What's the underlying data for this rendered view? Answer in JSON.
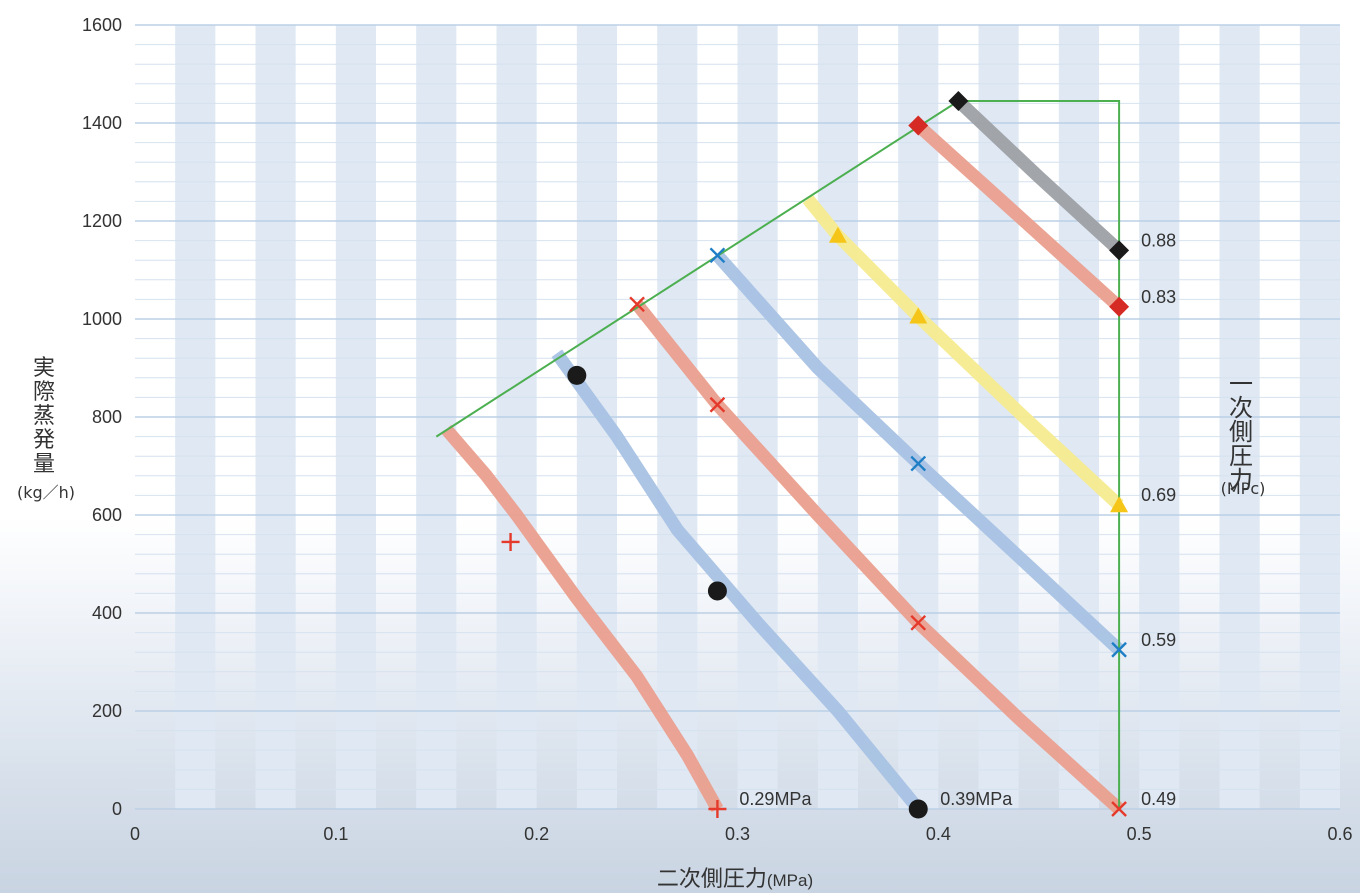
{
  "chart_data": {
    "type": "line",
    "xlabel": "二次側圧力",
    "xlabel_unit": "(MPa)",
    "ylabel": "実際蒸発量",
    "ylabel_unit": "(kg／h)",
    "right_label": "一次側圧力",
    "right_label_unit": "(MPc)",
    "xlim": [
      0,
      0.6
    ],
    "ylim": [
      0,
      1600
    ],
    "x_ticks": [
      0,
      0.1,
      0.2,
      0.3,
      0.4,
      0.5,
      0.6
    ],
    "x_tick_labels": [
      "0",
      "0.1",
      "0.2",
      "0.3",
      "0.4",
      "0.5",
      "0.6"
    ],
    "y_ticks": [
      0,
      200,
      400,
      600,
      800,
      1000,
      1200,
      1400,
      1600
    ],
    "y_tick_labels": [
      "0",
      "200",
      "400",
      "600",
      "800",
      "1000",
      "1200",
      "1400",
      "1600"
    ],
    "grid": true,
    "envelope": {
      "name": "",
      "color": "#4caf50",
      "points": [
        [
          0.15,
          760
        ],
        [
          0.41,
          1445
        ],
        [
          0.49,
          1445
        ],
        [
          0.49,
          0
        ]
      ]
    },
    "series": [
      {
        "label": "0.29MPa",
        "color": "#ea9f8e",
        "marker": "plus",
        "marker_color": "#e53a2b",
        "points": [
          [
            0.155,
            775
          ],
          [
            0.175,
            680
          ],
          [
            0.19,
            600
          ],
          [
            0.22,
            430
          ],
          [
            0.25,
            270
          ],
          [
            0.275,
            110
          ],
          [
            0.29,
            0
          ]
        ],
        "markers": [
          [
            0.187,
            545
          ],
          [
            0.29,
            0
          ]
        ]
      },
      {
        "label": "0.39MPa",
        "color": "#a8c2e4",
        "marker": "circle",
        "marker_color": "#1a1a1a",
        "points": [
          [
            0.21,
            930
          ],
          [
            0.24,
            760
          ],
          [
            0.27,
            570
          ],
          [
            0.31,
            380
          ],
          [
            0.35,
            200
          ],
          [
            0.39,
            0
          ]
        ],
        "markers": [
          [
            0.22,
            885
          ],
          [
            0.29,
            445
          ],
          [
            0.39,
            0
          ]
        ]
      },
      {
        "label": "0.49",
        "color": "#ea9f8e",
        "marker": "x",
        "marker_color": "#e53a2b",
        "points": [
          [
            0.25,
            1030
          ],
          [
            0.29,
            825
          ],
          [
            0.34,
            600
          ],
          [
            0.39,
            380
          ],
          [
            0.44,
            185
          ],
          [
            0.49,
            0
          ]
        ],
        "markers": [
          [
            0.25,
            1030
          ],
          [
            0.29,
            825
          ],
          [
            0.39,
            380
          ],
          [
            0.49,
            0
          ]
        ]
      },
      {
        "label": "0.59",
        "color": "#a8c2e4",
        "marker": "x",
        "marker_color": "#1e7fc6",
        "points": [
          [
            0.29,
            1130
          ],
          [
            0.34,
            900
          ],
          [
            0.39,
            705
          ],
          [
            0.44,
            515
          ],
          [
            0.49,
            325
          ]
        ],
        "markers": [
          [
            0.29,
            1130
          ],
          [
            0.39,
            705
          ],
          [
            0.49,
            325
          ]
        ]
      },
      {
        "label": "0.69",
        "color": "#f6eb8f",
        "marker": "triangle",
        "marker_color": "#f5c518",
        "points": [
          [
            0.335,
            1245
          ],
          [
            0.35,
            1170
          ],
          [
            0.39,
            1005
          ],
          [
            0.44,
            810
          ],
          [
            0.49,
            620
          ]
        ],
        "markers": [
          [
            0.35,
            1170
          ],
          [
            0.39,
            1005
          ],
          [
            0.49,
            620
          ]
        ]
      },
      {
        "label": "0.83",
        "color": "#ea9f8e",
        "marker": "diamond",
        "marker_color": "#d62b24",
        "points": [
          [
            0.39,
            1395
          ],
          [
            0.44,
            1210
          ],
          [
            0.49,
            1025
          ]
        ],
        "markers": [
          [
            0.39,
            1395
          ],
          [
            0.49,
            1025
          ]
        ]
      },
      {
        "label": "0.88",
        "color": "#9da0a4",
        "marker": "diamond",
        "marker_color": "#1a1a1a",
        "points": [
          [
            0.41,
            1445
          ],
          [
            0.45,
            1290
          ],
          [
            0.49,
            1140
          ]
        ],
        "markers": [
          [
            0.41,
            1445
          ],
          [
            0.49,
            1140
          ]
        ]
      }
    ]
  }
}
